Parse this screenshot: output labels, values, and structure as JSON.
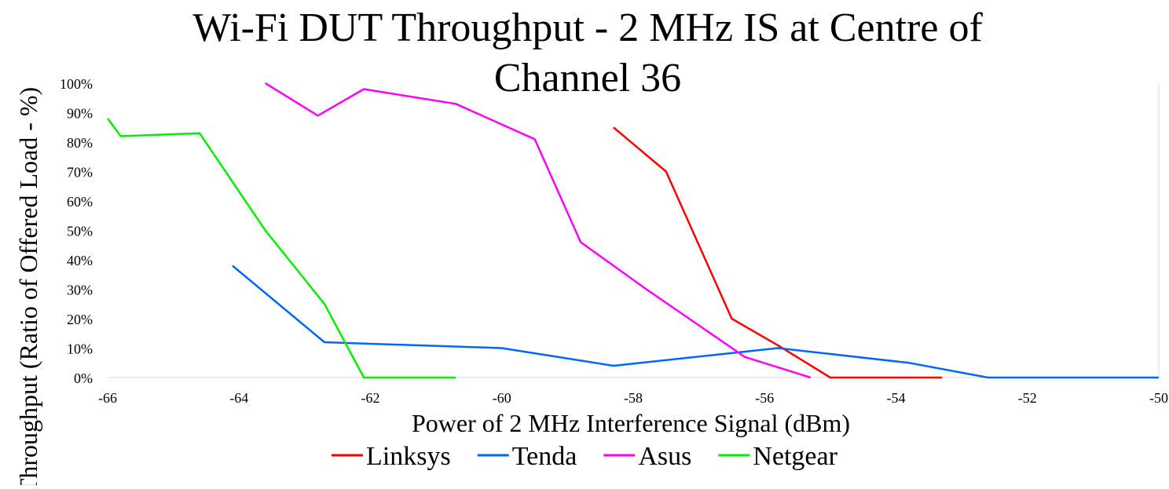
{
  "chart_data": {
    "type": "line",
    "title_lines": [
      "Wi-Fi DUT Throughput - 2 MHz IS at Centre of",
      "Channel 36"
    ],
    "xlabel": "Power of 2 MHz Interference Signal (dBm)",
    "ylabel": "Throughput (Ratio of Offered Load - %)",
    "xlim": [
      -66,
      -50
    ],
    "ylim": [
      0,
      100
    ],
    "x_ticks": [
      -66,
      -64,
      -62,
      -60,
      -58,
      -56,
      -54,
      -52,
      -50
    ],
    "x_tick_labels": [
      "-66",
      "-64",
      "-62",
      "-60",
      "-58",
      "-56",
      "-54",
      "-52",
      "-50"
    ],
    "y_ticks": [
      0,
      10,
      20,
      30,
      40,
      50,
      60,
      70,
      80,
      90,
      100
    ],
    "y_tick_labels": [
      "0%",
      "10%",
      "20%",
      "30%",
      "40%",
      "50%",
      "60%",
      "70%",
      "80%",
      "90%",
      "100%"
    ],
    "grid": false,
    "legend_position": "bottom",
    "series": [
      {
        "name": "Linksys",
        "color": "#ff0000",
        "points": [
          [
            -58.3,
            85
          ],
          [
            -57.5,
            70
          ],
          [
            -56.5,
            20
          ],
          [
            -55.8,
            11
          ],
          [
            -55,
            0
          ],
          [
            -53.3,
            0
          ]
        ]
      },
      {
        "name": "Tenda",
        "color": "#0066ff",
        "points": [
          [
            -64.1,
            38
          ],
          [
            -62.7,
            12
          ],
          [
            -60,
            10
          ],
          [
            -58.3,
            4
          ],
          [
            -55.8,
            10
          ],
          [
            -53.8,
            5
          ],
          [
            -52.6,
            0
          ],
          [
            -50,
            0
          ]
        ]
      },
      {
        "name": "Asus",
        "color": "#ff00ff",
        "points": [
          [
            -63.6,
            100
          ],
          [
            -62.8,
            89
          ],
          [
            -62.1,
            98
          ],
          [
            -60.7,
            93
          ],
          [
            -59.5,
            81
          ],
          [
            -58.8,
            46
          ],
          [
            -57.8,
            30
          ],
          [
            -56.3,
            7
          ],
          [
            -55.3,
            0
          ]
        ]
      },
      {
        "name": "Netgear",
        "color": "#00ee00",
        "points": [
          [
            -66,
            88
          ],
          [
            -65.8,
            82
          ],
          [
            -64.6,
            83
          ],
          [
            -63.6,
            50
          ],
          [
            -62.7,
            25
          ],
          [
            -62.1,
            0
          ],
          [
            -60.7,
            0
          ]
        ]
      }
    ]
  }
}
